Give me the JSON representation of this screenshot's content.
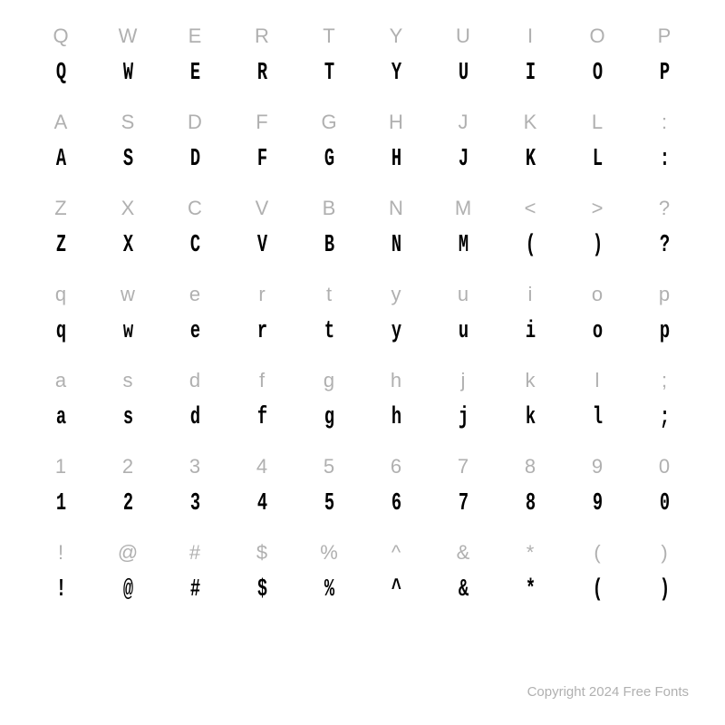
{
  "grid": {
    "columns": 10,
    "rows": 7,
    "ref_font_color": "#b0b0b0",
    "sample_font_color": "#000000",
    "background_color": "#ffffff",
    "ref_fontsize": 22,
    "sample_fontsize": 22,
    "cells": [
      {
        "ref": "Q",
        "sample": "Q"
      },
      {
        "ref": "W",
        "sample": "W"
      },
      {
        "ref": "E",
        "sample": "E"
      },
      {
        "ref": "R",
        "sample": "R"
      },
      {
        "ref": "T",
        "sample": "T"
      },
      {
        "ref": "Y",
        "sample": "Y"
      },
      {
        "ref": "U",
        "sample": "U"
      },
      {
        "ref": "I",
        "sample": "I"
      },
      {
        "ref": "O",
        "sample": "O"
      },
      {
        "ref": "P",
        "sample": "P"
      },
      {
        "ref": "A",
        "sample": "A"
      },
      {
        "ref": "S",
        "sample": "S"
      },
      {
        "ref": "D",
        "sample": "D"
      },
      {
        "ref": "F",
        "sample": "F"
      },
      {
        "ref": "G",
        "sample": "G"
      },
      {
        "ref": "H",
        "sample": "H"
      },
      {
        "ref": "J",
        "sample": "J"
      },
      {
        "ref": "K",
        "sample": "K"
      },
      {
        "ref": "L",
        "sample": "L"
      },
      {
        "ref": ":",
        "sample": ":"
      },
      {
        "ref": "Z",
        "sample": "Z"
      },
      {
        "ref": "X",
        "sample": "X"
      },
      {
        "ref": "C",
        "sample": "C"
      },
      {
        "ref": "V",
        "sample": "V"
      },
      {
        "ref": "B",
        "sample": "B"
      },
      {
        "ref": "N",
        "sample": "N"
      },
      {
        "ref": "M",
        "sample": "M"
      },
      {
        "ref": "<",
        "sample": "("
      },
      {
        "ref": ">",
        "sample": ")"
      },
      {
        "ref": "?",
        "sample": "?"
      },
      {
        "ref": "q",
        "sample": "q"
      },
      {
        "ref": "w",
        "sample": "w"
      },
      {
        "ref": "e",
        "sample": "e"
      },
      {
        "ref": "r",
        "sample": "r"
      },
      {
        "ref": "t",
        "sample": "t"
      },
      {
        "ref": "y",
        "sample": "y"
      },
      {
        "ref": "u",
        "sample": "u"
      },
      {
        "ref": "i",
        "sample": "i"
      },
      {
        "ref": "o",
        "sample": "o"
      },
      {
        "ref": "p",
        "sample": "p"
      },
      {
        "ref": "a",
        "sample": "a"
      },
      {
        "ref": "s",
        "sample": "s"
      },
      {
        "ref": "d",
        "sample": "d"
      },
      {
        "ref": "f",
        "sample": "f"
      },
      {
        "ref": "g",
        "sample": "g"
      },
      {
        "ref": "h",
        "sample": "h"
      },
      {
        "ref": "j",
        "sample": "j"
      },
      {
        "ref": "k",
        "sample": "k"
      },
      {
        "ref": "l",
        "sample": "l"
      },
      {
        "ref": ";",
        "sample": ";"
      },
      {
        "ref": "1",
        "sample": "1"
      },
      {
        "ref": "2",
        "sample": "2"
      },
      {
        "ref": "3",
        "sample": "3"
      },
      {
        "ref": "4",
        "sample": "4"
      },
      {
        "ref": "5",
        "sample": "5"
      },
      {
        "ref": "6",
        "sample": "6"
      },
      {
        "ref": "7",
        "sample": "7"
      },
      {
        "ref": "8",
        "sample": "8"
      },
      {
        "ref": "9",
        "sample": "9"
      },
      {
        "ref": "0",
        "sample": "0"
      },
      {
        "ref": "!",
        "sample": "!"
      },
      {
        "ref": "@",
        "sample": "@"
      },
      {
        "ref": "#",
        "sample": "#"
      },
      {
        "ref": "$",
        "sample": "$"
      },
      {
        "ref": "%",
        "sample": "%"
      },
      {
        "ref": "^",
        "sample": "^"
      },
      {
        "ref": "&",
        "sample": "&"
      },
      {
        "ref": "*",
        "sample": "*"
      },
      {
        "ref": "(",
        "sample": "("
      },
      {
        "ref": ")",
        "sample": ")"
      }
    ]
  },
  "footer": {
    "text": "Copyright 2024 Free Fonts",
    "color": "#b0b0b0",
    "fontsize": 15
  }
}
